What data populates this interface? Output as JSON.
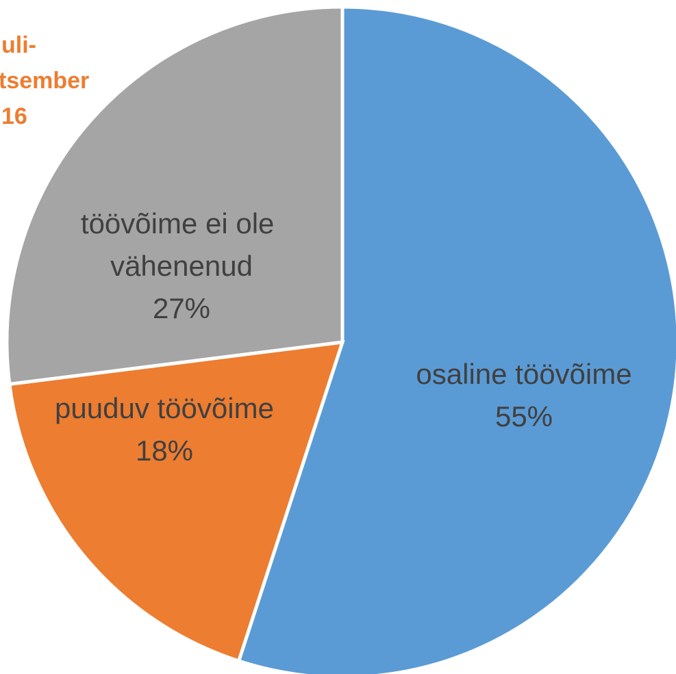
{
  "chart_data": {
    "type": "pie",
    "title_lines": [
      "uli-",
      "tsember",
      "16"
    ],
    "categories": [
      "osaline töövõime",
      "puuduv töövõime",
      "töövõime ei ole vähenenud"
    ],
    "values": [
      55,
      18,
      27
    ],
    "value_labels": [
      "55%",
      "18%",
      "27%"
    ],
    "colors": [
      "#5b9bd5",
      "#ed7d31",
      "#a5a5a5"
    ]
  }
}
